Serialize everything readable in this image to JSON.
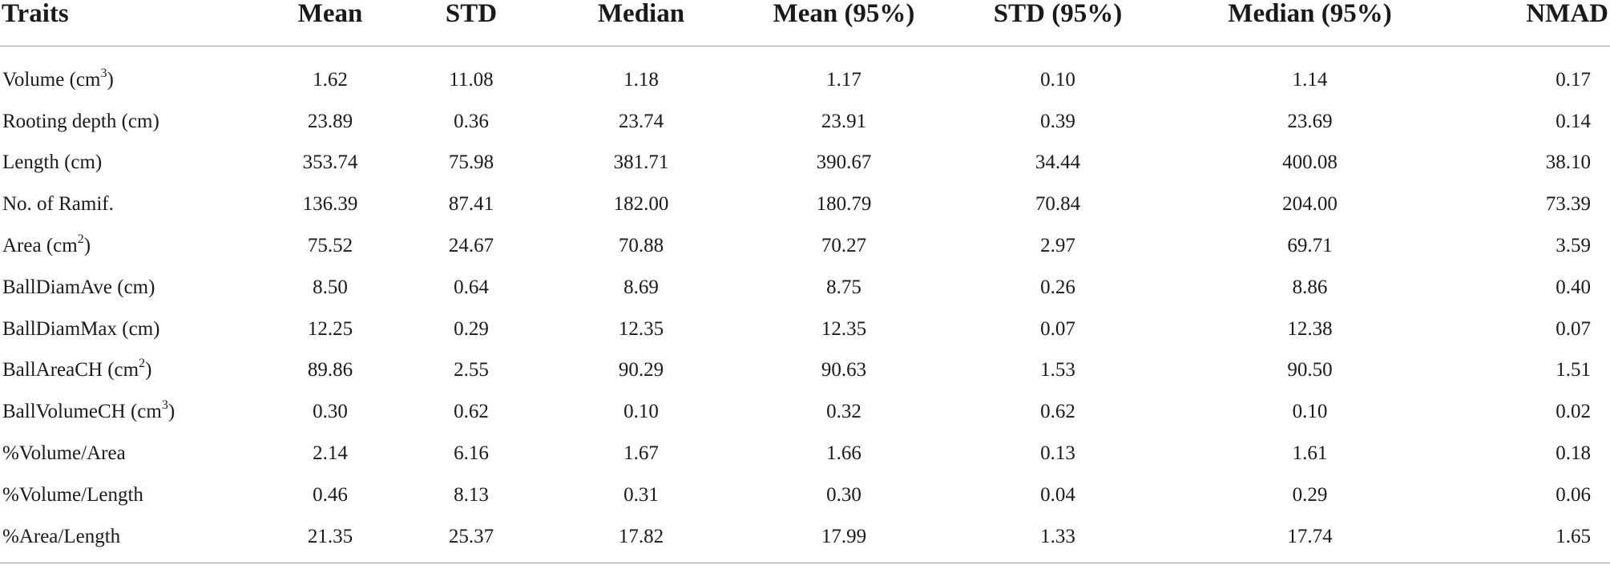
{
  "table": {
    "columns": [
      "Traits",
      "Mean",
      "STD",
      "Median",
      "Mean (95%)",
      "STD (95%)",
      "Median (95%)",
      "NMAD"
    ],
    "rows": [
      {
        "trait": "Volume (cm",
        "sup": "3",
        "trait_suffix": ")",
        "values": [
          "1.62",
          "11.08",
          "1.18",
          "1.17",
          "0.10",
          "1.14",
          "0.17"
        ]
      },
      {
        "trait": "Rooting depth (cm)",
        "sup": "",
        "trait_suffix": "",
        "values": [
          "23.89",
          "0.36",
          "23.74",
          "23.91",
          "0.39",
          "23.69",
          "0.14"
        ]
      },
      {
        "trait": "Length (cm)",
        "sup": "",
        "trait_suffix": "",
        "values": [
          "353.74",
          "75.98",
          "381.71",
          "390.67",
          "34.44",
          "400.08",
          "38.10"
        ]
      },
      {
        "trait": "No. of Ramif.",
        "sup": "",
        "trait_suffix": "",
        "values": [
          "136.39",
          "87.41",
          "182.00",
          "180.79",
          "70.84",
          "204.00",
          "73.39"
        ]
      },
      {
        "trait": "Area (cm",
        "sup": "2",
        "trait_suffix": ")",
        "values": [
          "75.52",
          "24.67",
          "70.88",
          "70.27",
          "2.97",
          "69.71",
          "3.59"
        ]
      },
      {
        "trait": "BallDiamAve (cm)",
        "sup": "",
        "trait_suffix": "",
        "values": [
          "8.50",
          "0.64",
          "8.69",
          "8.75",
          "0.26",
          "8.86",
          "0.40"
        ]
      },
      {
        "trait": "BallDiamMax (cm)",
        "sup": "",
        "trait_suffix": "",
        "values": [
          "12.25",
          "0.29",
          "12.35",
          "12.35",
          "0.07",
          "12.38",
          "0.07"
        ]
      },
      {
        "trait": "BallAreaCH (cm",
        "sup": "2",
        "trait_suffix": ")",
        "values": [
          "89.86",
          "2.55",
          "90.29",
          "90.63",
          "1.53",
          "90.50",
          "1.51"
        ]
      },
      {
        "trait": "BallVolumeCH (cm",
        "sup": "3",
        "trait_suffix": ")",
        "values": [
          "0.30",
          "0.62",
          "0.10",
          "0.32",
          "0.62",
          "0.10",
          "0.02"
        ]
      },
      {
        "trait": "%Volume/Area",
        "sup": "",
        "trait_suffix": "",
        "values": [
          "2.14",
          "6.16",
          "1.67",
          "1.66",
          "0.13",
          "1.61",
          "0.18"
        ]
      },
      {
        "trait": "%Volume/Length",
        "sup": "",
        "trait_suffix": "",
        "values": [
          "0.46",
          "8.13",
          "0.31",
          "0.30",
          "0.04",
          "0.29",
          "0.06"
        ]
      },
      {
        "trait": "%Area/Length",
        "sup": "",
        "trait_suffix": "",
        "values": [
          "21.35",
          "25.37",
          "17.82",
          "17.99",
          "1.33",
          "17.74",
          "1.65"
        ]
      }
    ]
  }
}
